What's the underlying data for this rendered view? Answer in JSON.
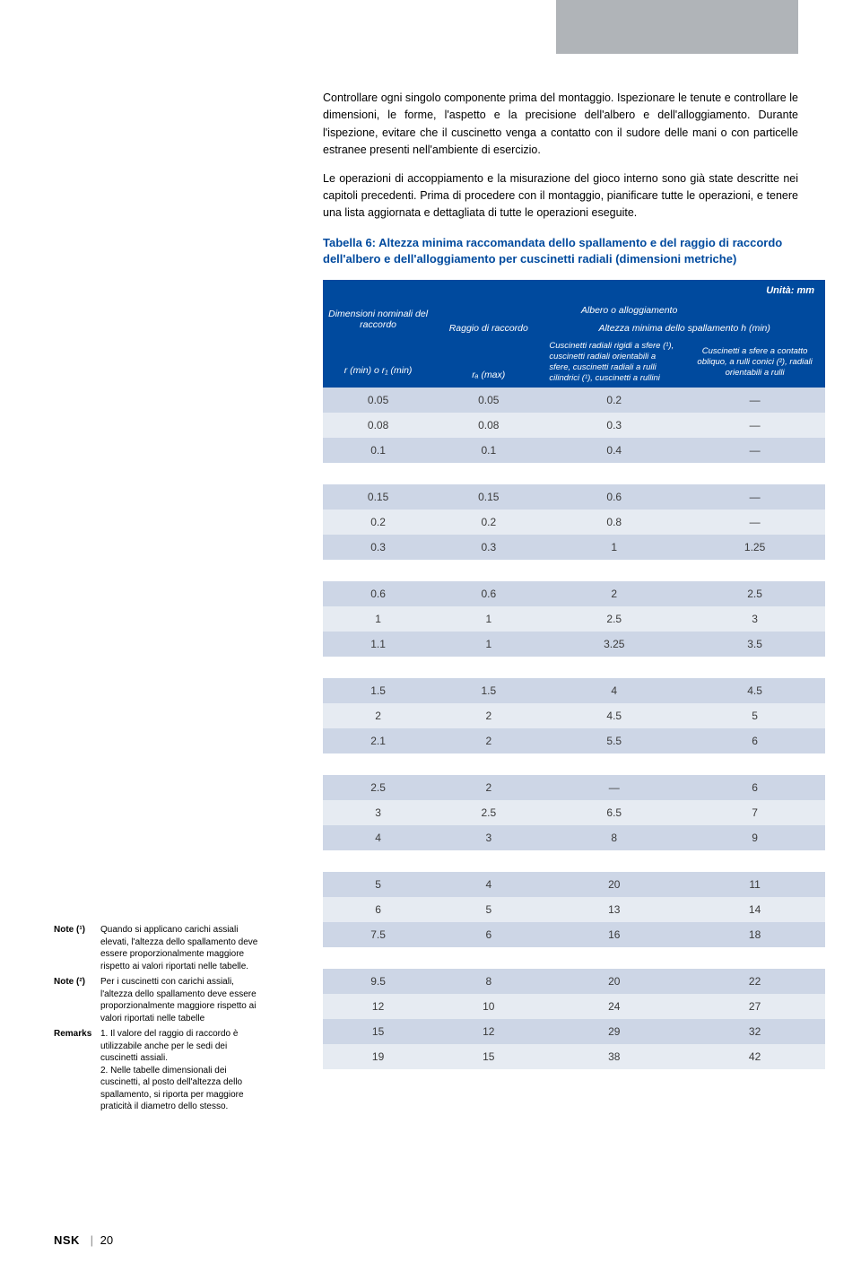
{
  "paragraphs": {
    "p1": "Controllare ogni singolo componente prima del montaggio. Ispezionare le tenute e controllare le dimensioni, le forme, l'aspetto e la precisione dell'albero e dell'alloggiamento. Durante l'ispezione, evitare che il cuscinetto venga a contatto con il sudore delle mani o con particelle estranee presenti nell'ambiente di esercizio.",
    "p2": "Le operazioni di accoppiamento e la misurazione del gioco interno sono già state descritte nei capitoli precedenti. Prima di procedere con il montaggio, pianificare tutte le operazioni, e tenere una lista aggiornata e dettagliata di tutte le operazioni eseguite."
  },
  "table_title": "Tabella 6: Altezza minima raccomandata dello spallamento e del raggio di raccordo dell'albero e dell'alloggiamento per cuscinetti radiali (dimensioni metriche)",
  "unit_label": "Unità: mm",
  "headers": {
    "dim_nom": "Dimensioni nominali del raccordo",
    "albero": "Albero o alloggiamento",
    "raggio": "Raggio di raccordo",
    "altezza": "Altezza minima dello spallamento h (min)",
    "rmin": "r (min) o r₁ (min)",
    "ramax": "rₐ (max)",
    "col3": "Cuscinetti radiali rigidi a sfere (¹), cuscinetti radiali orientabili a sfere, cuscinetti radiali a rulli cilindrici (¹), cuscinetti a rullini",
    "col4": "Cuscinetti a sfere a contatto obliquo, a rulli conici (²), radiali orientabili a rulli"
  },
  "groups": [
    [
      [
        "0.05",
        "0.05",
        "0.2",
        "—"
      ],
      [
        "0.08",
        "0.08",
        "0.3",
        "—"
      ],
      [
        "0.1",
        "0.1",
        "0.4",
        "—"
      ]
    ],
    [
      [
        "0.15",
        "0.15",
        "0.6",
        "—"
      ],
      [
        "0.2",
        "0.2",
        "0.8",
        "—"
      ],
      [
        "0.3",
        "0.3",
        "1",
        "1.25"
      ]
    ],
    [
      [
        "0.6",
        "0.6",
        "2",
        "2.5"
      ],
      [
        "1",
        "1",
        "2.5",
        "3"
      ],
      [
        "1.1",
        "1",
        "3.25",
        "3.5"
      ]
    ],
    [
      [
        "1.5",
        "1.5",
        "4",
        "4.5"
      ],
      [
        "2",
        "2",
        "4.5",
        "5"
      ],
      [
        "2.1",
        "2",
        "5.5",
        "6"
      ]
    ],
    [
      [
        "2.5",
        "2",
        "—",
        "6"
      ],
      [
        "3",
        "2.5",
        "6.5",
        "7"
      ],
      [
        "4",
        "3",
        "8",
        "9"
      ]
    ],
    [
      [
        "5",
        "4",
        "20",
        "11"
      ],
      [
        "6",
        "5",
        "13",
        "14"
      ],
      [
        "7.5",
        "6",
        "16",
        "18"
      ]
    ],
    [
      [
        "9.5",
        "8",
        "20",
        "22"
      ],
      [
        "12",
        "10",
        "24",
        "27"
      ],
      [
        "15",
        "12",
        "29",
        "32"
      ],
      [
        "19",
        "15",
        "38",
        "42"
      ]
    ]
  ],
  "notes": {
    "n1_label": "Note (¹)",
    "n1_text": "Quando si applicano carichi assiali elevati, l'altezza dello spallamento deve essere proporzionalmente maggiore rispetto ai valori riportati nelle tabelle.",
    "n2_label": "Note (²)",
    "n2_text": "Per i cuscinetti con carichi assiali, l'altezza dello spallamento deve essere proporzionalmente maggiore rispetto ai valori riportati nelle tabelle",
    "r_label": "Remarks",
    "r_text": "1. Il valore del raggio di raccordo è utilizzabile anche per le sedi dei cuscinetti assiali.\n2. Nelle tabelle dimensionali dei cuscinetti, al posto dell'altezza dello spallamento, si riporta per maggiore praticità il diametro dello stesso."
  },
  "footer": {
    "brand": "NSK",
    "page": "20"
  }
}
